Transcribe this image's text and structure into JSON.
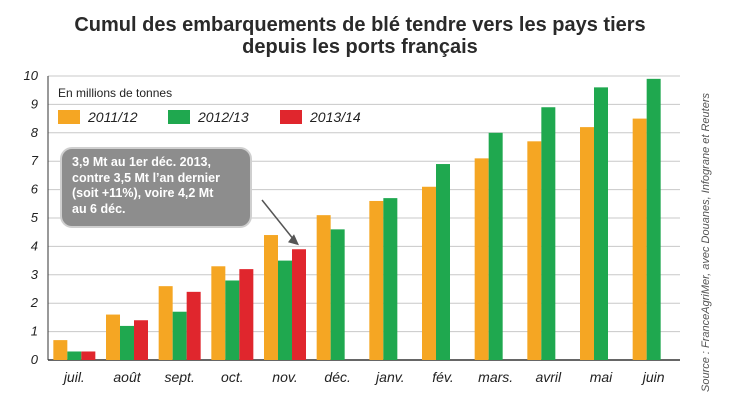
{
  "title_line1": "Cumul des embarquements de blé tendre vers les pays tiers",
  "title_line2": "depuis les ports français",
  "unit_label": "En millions de tonnes",
  "callout_text": "3,9 Mt au 1er déc. 2013,\ncontre 3,5 Mt l’an dernier\n(soit +11%), voire 4,2 Mt\nau 6 déc.",
  "source_text": "Source : FranceAgriMer, avec Douanes, Infograne et Reuters",
  "colors": {
    "s2011": "#f5a623",
    "s2012": "#1fa84f",
    "s2013": "#e0262d",
    "grid": "#c8c8c8",
    "axis": "#333333"
  },
  "chart_data": {
    "type": "bar",
    "title": "Cumul des embarquements de blé tendre vers les pays tiers depuis les ports français",
    "ylabel": "En millions de tonnes",
    "xlabel": "",
    "ylim": [
      0,
      10
    ],
    "yticks": [
      0,
      1,
      2,
      3,
      4,
      5,
      6,
      7,
      8,
      9,
      10
    ],
    "grid": true,
    "legend_position": "top-left",
    "categories": [
      "juil.",
      "août",
      "sept.",
      "oct.",
      "nov.",
      "déc.",
      "janv.",
      "fév.",
      "mars.",
      "avril",
      "mai",
      "juin"
    ],
    "series": [
      {
        "name": "2011/12",
        "color": "#f5a623",
        "values": [
          0.7,
          1.6,
          2.6,
          3.3,
          4.4,
          5.1,
          5.6,
          6.1,
          7.1,
          7.7,
          8.2,
          8.5
        ]
      },
      {
        "name": "2012/13",
        "color": "#1fa84f",
        "values": [
          0.3,
          1.2,
          1.7,
          2.8,
          3.5,
          4.6,
          5.7,
          6.9,
          8.0,
          8.9,
          9.6,
          9.9
        ]
      },
      {
        "name": "2013/14",
        "color": "#e0262d",
        "values": [
          0.3,
          1.4,
          2.4,
          3.2,
          3.9,
          null,
          null,
          null,
          null,
          null,
          null,
          null
        ]
      }
    ],
    "annotation": "3,9 Mt au 1er déc. 2013, contre 3,5 Mt l’an dernier (soit +11%), voire 4,2 Mt au 6 déc."
  }
}
